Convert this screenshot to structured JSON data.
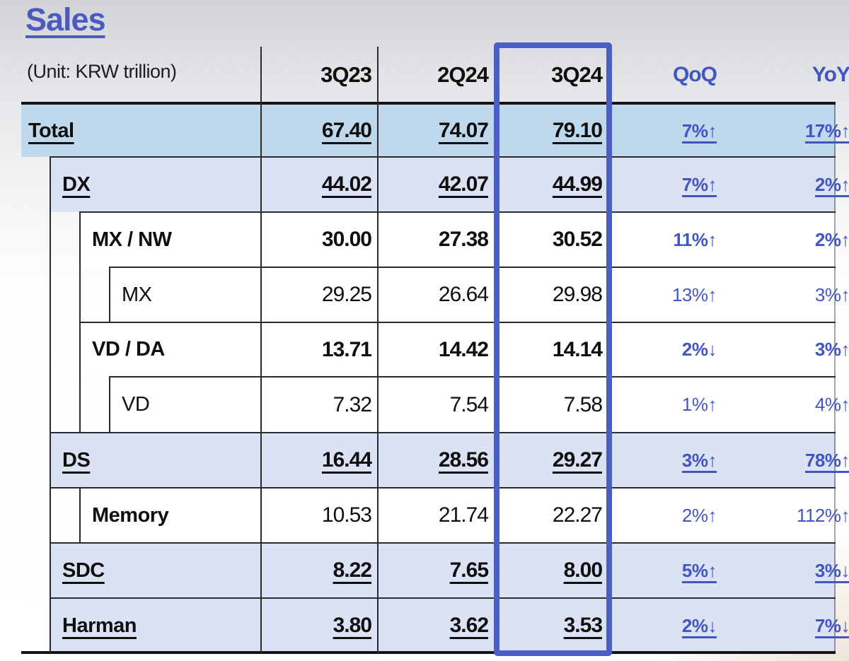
{
  "title": "Sales",
  "unit_label": "(Unit: KRW trillion)",
  "colors": {
    "accent_text": "#4355c0",
    "highlight_border": "#4a5ec6",
    "row_blue": "#bfd8ec",
    "row_lavender": "#dae2f3"
  },
  "header": {
    "periods": [
      "3Q23",
      "2Q24",
      "3Q24"
    ],
    "deltas": [
      "QoQ",
      "YoY"
    ],
    "highlighted_period": "3Q24"
  },
  "rows": [
    {
      "label": "Total",
      "indent": 0,
      "values": [
        "67.40",
        "74.07",
        "79.10"
      ],
      "qoq": "7%↑",
      "yoy": "17%↑",
      "style": "underline-bold",
      "bg": "blue"
    },
    {
      "label": "DX",
      "indent": 1,
      "values": [
        "44.02",
        "42.07",
        "44.99"
      ],
      "qoq": "7%↑",
      "yoy": "2%↑",
      "style": "underline-bold",
      "bg": "lavender"
    },
    {
      "label": "MX / NW",
      "indent": 2,
      "values": [
        "30.00",
        "27.38",
        "30.52"
      ],
      "qoq": "11%↑",
      "yoy": "2%↑",
      "style": "bold",
      "bg": "white"
    },
    {
      "label": "MX",
      "indent": 3,
      "values": [
        "29.25",
        "26.64",
        "29.98"
      ],
      "qoq": "13%↑",
      "yoy": "3%↑",
      "style": "normal",
      "bg": "white"
    },
    {
      "label": "VD / DA",
      "indent": 2,
      "values": [
        "13.71",
        "14.42",
        "14.14"
      ],
      "qoq": "2%↓",
      "yoy": "3%↑",
      "style": "bold",
      "bg": "white"
    },
    {
      "label": "VD",
      "indent": 3,
      "values": [
        "7.32",
        "7.54",
        "7.58"
      ],
      "qoq": "1%↑",
      "yoy": "4%↑",
      "style": "normal",
      "bg": "white"
    },
    {
      "label": "DS",
      "indent": 1,
      "values": [
        "16.44",
        "28.56",
        "29.27"
      ],
      "qoq": "3%↑",
      "yoy": "78%↑",
      "style": "underline-bold",
      "bg": "lavender"
    },
    {
      "label": "Memory",
      "indent": 2,
      "values": [
        "10.53",
        "21.74",
        "22.27"
      ],
      "qoq": "2%↑",
      "yoy": "112%↑",
      "style": "label-medium",
      "bg": "white"
    },
    {
      "label": "SDC",
      "indent": 1,
      "values": [
        "8.22",
        "7.65",
        "8.00"
      ],
      "qoq": "5%↑",
      "yoy": "3%↓",
      "style": "underline-bold",
      "bg": "lavender"
    },
    {
      "label": "Harman",
      "indent": 1,
      "values": [
        "3.80",
        "3.62",
        "3.53"
      ],
      "qoq": "2%↓",
      "yoy": "7%↓",
      "style": "underline-bold",
      "bg": "lavender"
    }
  ]
}
